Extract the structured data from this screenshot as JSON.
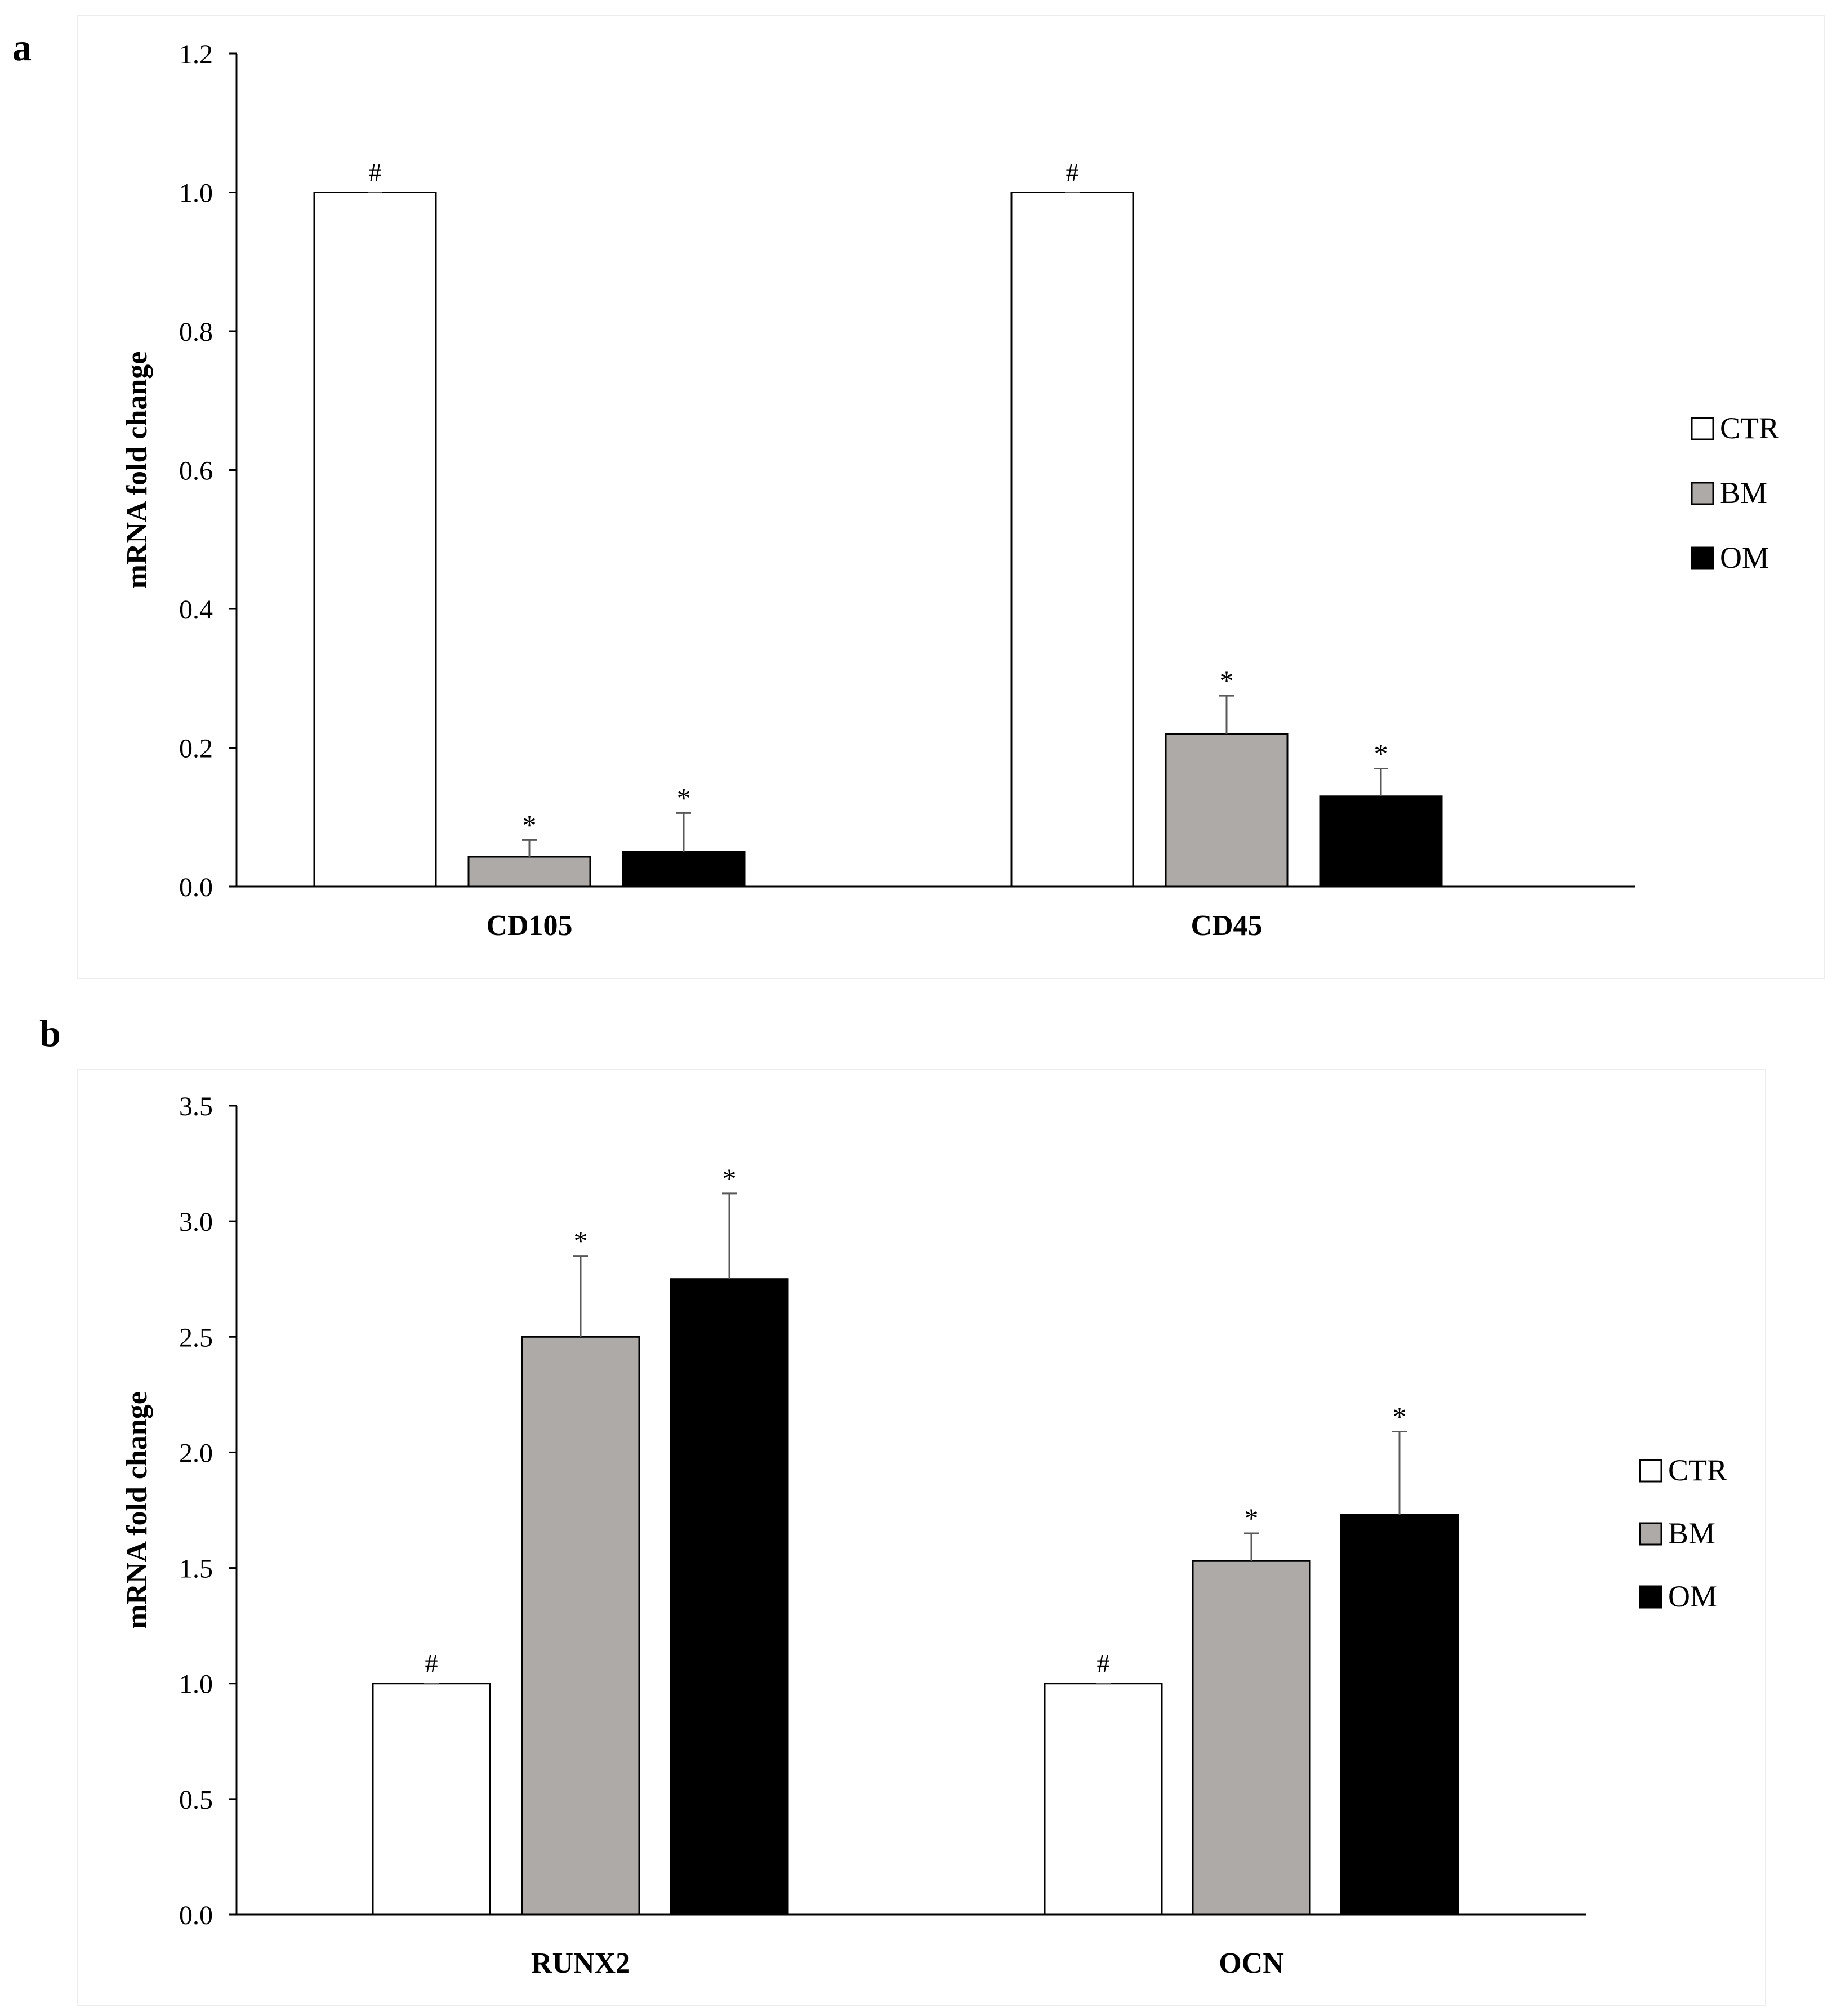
{
  "panels": [
    {
      "letter": "a"
    },
    {
      "letter": "b"
    }
  ],
  "colors": {
    "CTR": "#ffffff",
    "BM": "#aeaaa8",
    "OM": "#000000",
    "axis": "#000000",
    "error": "#595959"
  },
  "chart_data": [
    {
      "type": "bar",
      "panel": "a",
      "title": "",
      "xlabel": "",
      "ylabel": "mRNA fold change",
      "ylim": [
        0,
        1.2
      ],
      "yticks": [
        "0.0",
        "0.2",
        "0.4",
        "0.6",
        "0.8",
        "1.0",
        "1.2"
      ],
      "grid": false,
      "legend_position": "right",
      "categories": [
        "CD105",
        "CD45"
      ],
      "series": [
        {
          "name": "CTR",
          "values": [
            1.0,
            1.0
          ],
          "errors": [
            0.0,
            0.0
          ],
          "markers": [
            "#",
            "#"
          ]
        },
        {
          "name": "BM",
          "values": [
            0.043,
            0.22
          ],
          "errors": [
            0.024,
            0.055
          ],
          "markers": [
            "*",
            "*"
          ]
        },
        {
          "name": "OM",
          "values": [
            0.05,
            0.13
          ],
          "errors": [
            0.056,
            0.04
          ],
          "markers": [
            "*",
            "*"
          ]
        }
      ]
    },
    {
      "type": "bar",
      "panel": "b",
      "title": "",
      "xlabel": "",
      "ylabel": "mRNA fold change",
      "ylim": [
        0,
        3.5
      ],
      "yticks": [
        "0.0",
        "0.5",
        "1.0",
        "1.5",
        "2.0",
        "2.5",
        "3.0",
        "3.5"
      ],
      "grid": false,
      "legend_position": "right",
      "categories": [
        "RUNX2",
        "OCN"
      ],
      "series": [
        {
          "name": "CTR",
          "values": [
            1.0,
            1.0
          ],
          "errors": [
            0.0,
            0.0
          ],
          "markers": [
            "#",
            "#"
          ]
        },
        {
          "name": "BM",
          "values": [
            2.5,
            1.53
          ],
          "errors": [
            0.35,
            0.12
          ],
          "markers": [
            "*",
            "*"
          ]
        },
        {
          "name": "OM",
          "values": [
            2.75,
            1.73
          ],
          "errors": [
            0.37,
            0.36
          ],
          "markers": [
            "*",
            "*"
          ]
        }
      ]
    }
  ]
}
